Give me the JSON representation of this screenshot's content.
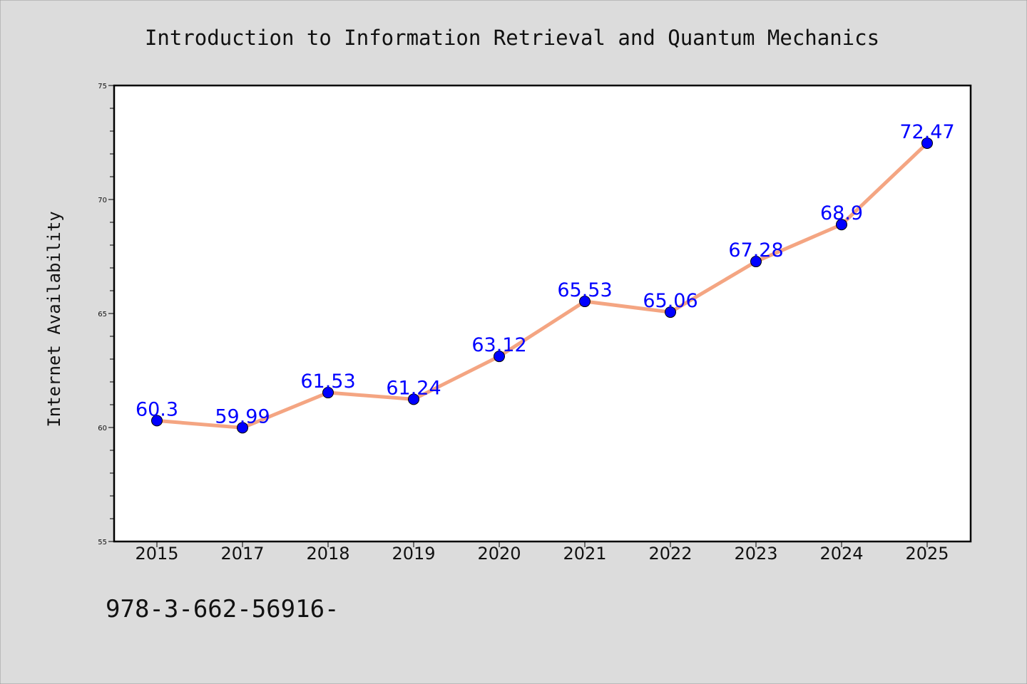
{
  "chart_data": {
    "type": "line",
    "title": "Introduction to Information Retrieval and Quantum Mechanics",
    "xlabel": "",
    "ylabel": "Internet Availability",
    "categories": [
      "2015",
      "2017",
      "2018",
      "2019",
      "2020",
      "2021",
      "2022",
      "2023",
      "2024",
      "2025"
    ],
    "series": [
      {
        "values": [
          60.3,
          59.99,
          61.53,
          61.24,
          63.12,
          65.53,
          65.06,
          67.28,
          68.9,
          72.47
        ],
        "data_labels": [
          "60.3",
          "59.99",
          "61.53",
          "61.24",
          "63.12",
          "65.53",
          "65.06",
          "67.28",
          "68.9",
          "72.47"
        ],
        "line_color": "#f4a582",
        "marker_color": "#0000ff"
      }
    ],
    "ylim": [
      55,
      75
    ],
    "yticks": [
      "55",
      "60",
      "65",
      "70",
      "75"
    ],
    "grid": false,
    "legend": "none"
  },
  "footer": {
    "isbn": "978-3-662-56916-"
  },
  "colors": {
    "background": "#dcdcdc",
    "plot_background": "#ffffff",
    "line": "#f4a582",
    "marker": "#0000ff",
    "data_label": "#0000ff"
  }
}
